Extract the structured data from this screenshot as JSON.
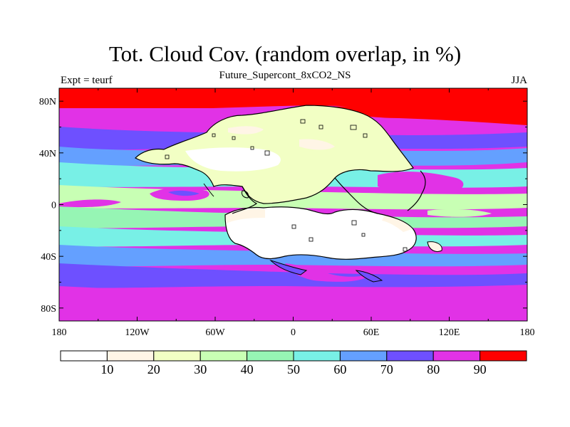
{
  "chart_data": {
    "type": "map",
    "title": "Tot. Cloud Cov. (random overlap, in %)",
    "subtitle": "Future_Supercont_8xCO2_NS",
    "left_label": "Expt = teurf",
    "right_label": "JJA",
    "x_ticks": [
      {
        "value": -180,
        "label": "180"
      },
      {
        "value": -120,
        "label": "120W"
      },
      {
        "value": -60,
        "label": "60W"
      },
      {
        "value": 0,
        "label": "0"
      },
      {
        "value": 60,
        "label": "60E"
      },
      {
        "value": 120,
        "label": "120E"
      },
      {
        "value": 180,
        "label": "180"
      }
    ],
    "y_ticks": [
      {
        "value": 80,
        "label": "80N"
      },
      {
        "value": 40,
        "label": "40N"
      },
      {
        "value": 0,
        "label": "0"
      },
      {
        "value": -40,
        "label": "40S"
      },
      {
        "value": -80,
        "label": "80S"
      }
    ],
    "xlim": [
      -180,
      180
    ],
    "ylim": [
      -90,
      90
    ],
    "colorbar": {
      "levels": [
        10,
        20,
        30,
        40,
        50,
        60,
        70,
        80,
        90
      ],
      "labels": [
        "10",
        "20",
        "30",
        "40",
        "50",
        "60",
        "70",
        "80",
        "90"
      ],
      "colors": [
        "#ffffff",
        "#fff5e6",
        "#f2ffc4",
        "#c8ffb4",
        "#96f5b4",
        "#78f0e6",
        "#64a0ff",
        "#6e50ff",
        "#e132e6",
        "#ff0000"
      ]
    }
  }
}
